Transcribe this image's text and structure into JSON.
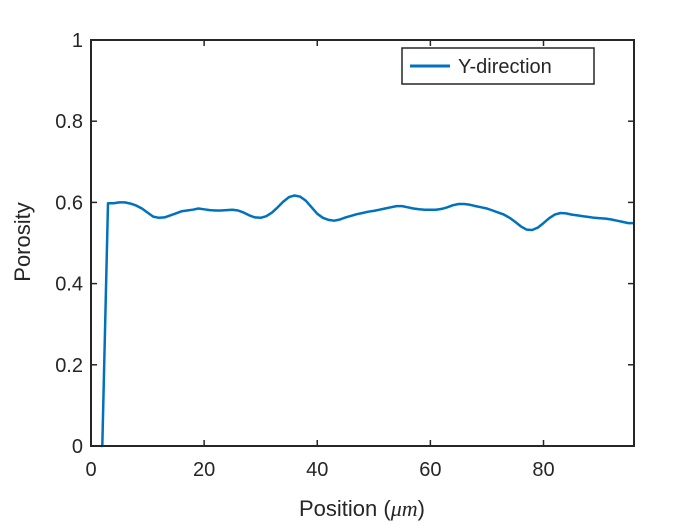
{
  "chart_data": {
    "type": "line",
    "xlabel": "Position (",
    "xlabel_unit": "μm",
    "xlabel_close": ")",
    "ylabel": "Porosity",
    "xlim": [
      0,
      96
    ],
    "ylim": [
      0,
      1
    ],
    "xticks": [
      0,
      20,
      40,
      60,
      80
    ],
    "yticks": [
      0,
      0.2,
      0.4,
      0.6,
      0.8,
      1
    ],
    "ytick_labels": [
      "0",
      "0.2",
      "0.4",
      "0.6",
      "0.8",
      "1"
    ],
    "legend_position": "top-right",
    "grid": false,
    "series": [
      {
        "name": "Y-direction",
        "color": "#0072bd",
        "x": [
          1.8,
          2.0,
          3.0,
          4.0,
          5.0,
          6.0,
          7.0,
          8.0,
          9.0,
          10.0,
          11.0,
          12.0,
          13.0,
          14.0,
          15.0,
          16.0,
          17.0,
          18.0,
          19.0,
          20.0,
          21.0,
          22.0,
          23.0,
          24.0,
          25.0,
          26.0,
          27.0,
          28.0,
          29.0,
          30.0,
          31.0,
          32.0,
          33.0,
          34.0,
          35.0,
          36.0,
          37.0,
          38.0,
          39.0,
          40.0,
          41.0,
          42.0,
          43.0,
          44.0,
          45.0,
          46.0,
          47.0,
          48.0,
          49.0,
          50.0,
          51.0,
          52.0,
          53.0,
          54.0,
          55.0,
          56.0,
          57.0,
          58.0,
          59.0,
          60.0,
          61.0,
          62.0,
          63.0,
          64.0,
          65.0,
          66.0,
          67.0,
          68.0,
          69.0,
          70.0,
          71.0,
          72.0,
          73.0,
          74.0,
          75.0,
          76.0,
          77.0,
          78.0,
          79.0,
          80.0,
          81.0,
          82.0,
          83.0,
          84.0,
          85.0,
          86.0,
          87.0,
          88.0,
          89.0,
          90.0,
          91.0,
          92.0,
          93.0,
          94.0,
          95.0,
          96.0
        ],
        "y": [
          0.0,
          0.0,
          0.598,
          0.598,
          0.6,
          0.6,
          0.597,
          0.592,
          0.585,
          0.575,
          0.565,
          0.562,
          0.563,
          0.568,
          0.573,
          0.578,
          0.58,
          0.582,
          0.585,
          0.583,
          0.581,
          0.58,
          0.58,
          0.581,
          0.582,
          0.58,
          0.575,
          0.568,
          0.563,
          0.562,
          0.566,
          0.575,
          0.588,
          0.602,
          0.613,
          0.617,
          0.614,
          0.604,
          0.588,
          0.572,
          0.562,
          0.557,
          0.555,
          0.558,
          0.563,
          0.567,
          0.571,
          0.574,
          0.577,
          0.579,
          0.582,
          0.585,
          0.588,
          0.591,
          0.591,
          0.588,
          0.585,
          0.583,
          0.582,
          0.582,
          0.582,
          0.584,
          0.588,
          0.593,
          0.596,
          0.596,
          0.594,
          0.591,
          0.588,
          0.585,
          0.58,
          0.575,
          0.57,
          0.562,
          0.552,
          0.541,
          0.533,
          0.532,
          0.538,
          0.549,
          0.561,
          0.57,
          0.574,
          0.573,
          0.57,
          0.568,
          0.566,
          0.564,
          0.562,
          0.561,
          0.56,
          0.558,
          0.555,
          0.552,
          0.549,
          0.549
        ]
      }
    ]
  }
}
